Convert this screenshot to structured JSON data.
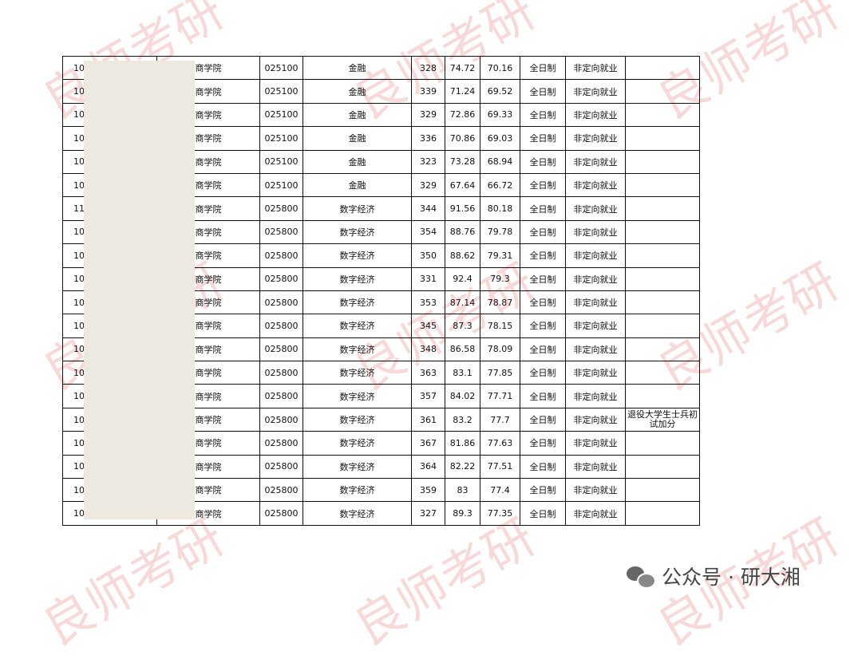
{
  "watermark": "良师考研",
  "footer": {
    "text": "公众号 · 研大湘"
  },
  "table": {
    "rows": [
      [
        "10",
        "商学院",
        "025100",
        "金融",
        "328",
        "74.72",
        "70.16",
        "全日制",
        "非定向就业",
        ""
      ],
      [
        "10",
        "商学院",
        "025100",
        "金融",
        "339",
        "71.24",
        "69.52",
        "全日制",
        "非定向就业",
        ""
      ],
      [
        "10",
        "商学院",
        "025100",
        "金融",
        "329",
        "72.86",
        "69.33",
        "全日制",
        "非定向就业",
        ""
      ],
      [
        "10",
        "商学院",
        "025100",
        "金融",
        "336",
        "70.86",
        "69.03",
        "全日制",
        "非定向就业",
        ""
      ],
      [
        "10",
        "商学院",
        "025100",
        "金融",
        "323",
        "73.28",
        "68.94",
        "全日制",
        "非定向就业",
        ""
      ],
      [
        "10",
        "商学院",
        "025100",
        "金融",
        "329",
        "67.64",
        "66.72",
        "全日制",
        "非定向就业",
        ""
      ],
      [
        "11",
        "商学院",
        "025800",
        "数字经济",
        "344",
        "91.56",
        "80.18",
        "全日制",
        "非定向就业",
        ""
      ],
      [
        "10",
        "商学院",
        "025800",
        "数字经济",
        "354",
        "88.76",
        "79.78",
        "全日制",
        "非定向就业",
        ""
      ],
      [
        "10",
        "商学院",
        "025800",
        "数字经济",
        "350",
        "88.62",
        "79.31",
        "全日制",
        "非定向就业",
        ""
      ],
      [
        "10",
        "商学院",
        "025800",
        "数字经济",
        "331",
        "92.4",
        "79.3",
        "全日制",
        "非定向就业",
        ""
      ],
      [
        "10",
        "商学院",
        "025800",
        "数字经济",
        "353",
        "87.14",
        "78.87",
        "全日制",
        "非定向就业",
        ""
      ],
      [
        "10",
        "商学院",
        "025800",
        "数字经济",
        "345",
        "87.3",
        "78.15",
        "全日制",
        "非定向就业",
        ""
      ],
      [
        "10",
        "商学院",
        "025800",
        "数字经济",
        "348",
        "86.58",
        "78.09",
        "全日制",
        "非定向就业",
        ""
      ],
      [
        "10",
        "商学院",
        "025800",
        "数字经济",
        "363",
        "83.1",
        "77.85",
        "全日制",
        "非定向就业",
        ""
      ],
      [
        "10",
        "商学院",
        "025800",
        "数字经济",
        "357",
        "84.02",
        "77.71",
        "全日制",
        "非定向就业",
        ""
      ],
      [
        "10",
        "商学院",
        "025800",
        "数字经济",
        "361",
        "83.2",
        "77.7",
        "全日制",
        "非定向就业",
        "退役大学生士兵初试加分"
      ],
      [
        "10",
        "商学院",
        "025800",
        "数字经济",
        "367",
        "81.86",
        "77.63",
        "全日制",
        "非定向就业",
        ""
      ],
      [
        "10",
        "商学院",
        "025800",
        "数字经济",
        "364",
        "82.22",
        "77.51",
        "全日制",
        "非定向就业",
        ""
      ],
      [
        "10",
        "商学院",
        "025800",
        "数字经济",
        "359",
        "83",
        "77.4",
        "全日制",
        "非定向就业",
        ""
      ],
      [
        "10",
        "商学院",
        "025800",
        "数字经济",
        "327",
        "89.3",
        "77.35",
        "全日制",
        "非定向就业",
        ""
      ]
    ]
  }
}
